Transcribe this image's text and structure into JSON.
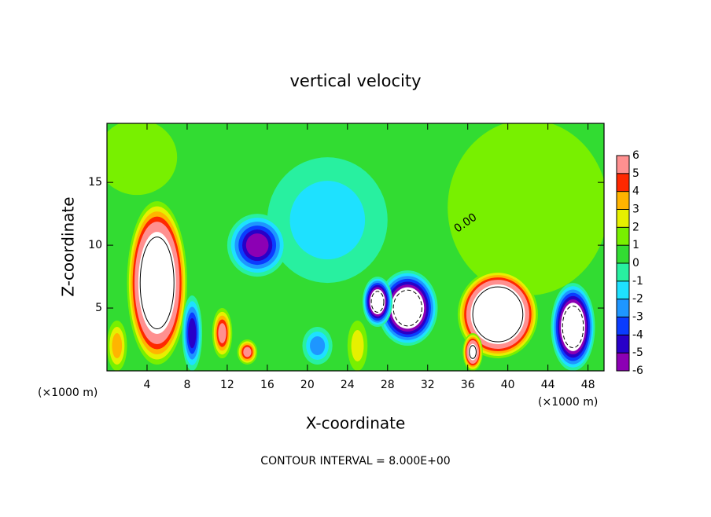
{
  "chart_data": {
    "type": "contour",
    "title": "vertical velocity",
    "x_label": "X-coordinate",
    "y_label": "Z-coordinate",
    "x_unit": "(×1000 m)",
    "y_unit": "(×1000 m)",
    "footnote": "CONTOUR INTERVAL = 8.000E+00",
    "contour_label": "0.00",
    "xlim": [
      0,
      49.6
    ],
    "ylim": [
      0,
      19.7
    ],
    "xticks": [
      4,
      8,
      12,
      16,
      20,
      24,
      28,
      32,
      36,
      40,
      44,
      48
    ],
    "yticks": [
      5,
      10,
      15
    ],
    "background_value": 0.5,
    "contour_interval": 8,
    "features": [
      {
        "x": 22,
        "z": 12,
        "rx": 6,
        "rz": 5,
        "value": -1.5
      },
      {
        "x": 42,
        "z": 13,
        "rx": 8,
        "rz": 7,
        "value": 1.3
      },
      {
        "x": 3,
        "z": 17,
        "rx": 4,
        "rz": 3,
        "value": 1.6
      },
      {
        "x": 5,
        "z": 7,
        "rx": 3,
        "rz": 6.5,
        "value": 12
      },
      {
        "x": 39,
        "z": 4.5,
        "rx": 4,
        "rz": 3.5,
        "value": 14
      },
      {
        "x": 46.5,
        "z": 3.5,
        "rx": 2.2,
        "rz": 3.5,
        "value": -10
      },
      {
        "x": 30,
        "z": 5,
        "rx": 3,
        "rz": 3,
        "value": -10
      },
      {
        "x": 27,
        "z": 5.5,
        "rx": 1.5,
        "rz": 2,
        "value": -9
      },
      {
        "x": 15,
        "z": 10,
        "rx": 3,
        "rz": 2.5,
        "value": -5.5
      },
      {
        "x": 8.5,
        "z": 3,
        "rx": 1,
        "rz": 3,
        "value": -5
      },
      {
        "x": 11.5,
        "z": 3,
        "rx": 1,
        "rz": 2,
        "value": 5
      },
      {
        "x": 14,
        "z": 1.5,
        "rx": 1,
        "rz": 1,
        "value": 5
      },
      {
        "x": 36.5,
        "z": 1.5,
        "rx": 1,
        "rz": 1.5,
        "value": 8
      },
      {
        "x": 25,
        "z": 2,
        "rx": 1,
        "rz": 2,
        "value": 2
      },
      {
        "x": 21,
        "z": 2,
        "rx": 1.5,
        "rz": 1.5,
        "value": -3
      },
      {
        "x": 1,
        "z": 2,
        "rx": 1,
        "rz": 2,
        "value": 3
      }
    ],
    "colorbar": {
      "levels": [
        6,
        5,
        4,
        3,
        2,
        1,
        0,
        -1,
        -2,
        -3,
        -4,
        -5,
        -6
      ],
      "colors": [
        "#8c00b4",
        "#2800c8",
        "#0a3cff",
        "#1e96ff",
        "#1ee1ff",
        "#28f0a0",
        "#32dc32",
        "#78f000",
        "#e6f000",
        "#ffb400",
        "#ff2800",
        "#ff9090"
      ]
    }
  }
}
